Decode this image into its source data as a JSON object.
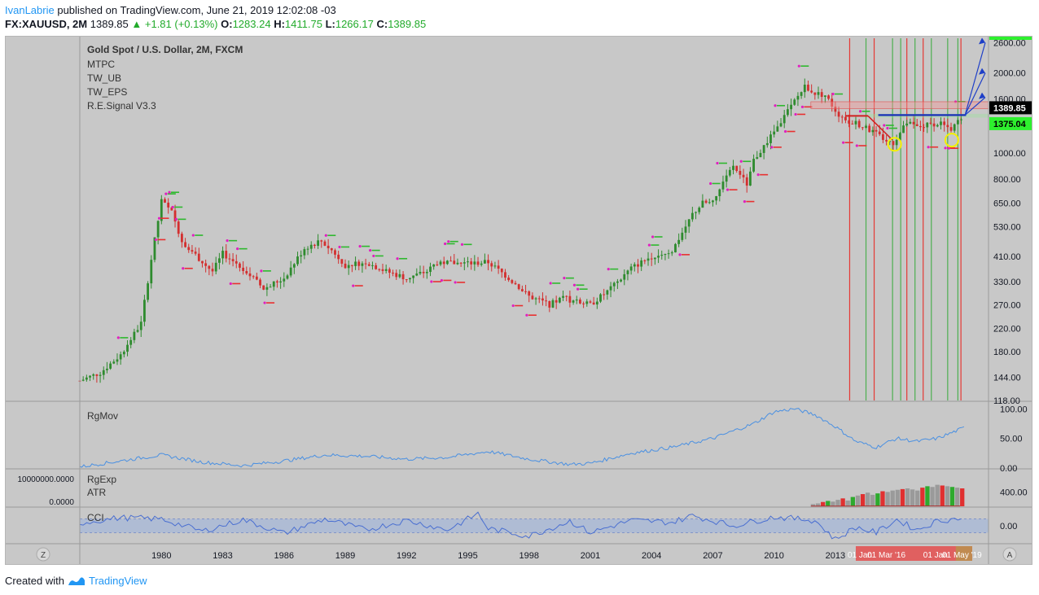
{
  "header": {
    "author": "IvanLabrie",
    "published": "published on TradingView.com, June 21, 2019 12:02:08 -03",
    "symbol": "FX:XAUUSD, 2M",
    "price": "1389.85",
    "change": "+1.81 (+0.13%)",
    "ohlc": [
      {
        "key": "O:",
        "value": "1283.24"
      },
      {
        "key": "H:",
        "value": "1411.75"
      },
      {
        "key": "L:",
        "value": "1266.17"
      },
      {
        "key": "C:",
        "value": "1389.85"
      }
    ]
  },
  "legend": {
    "title": "Gold Spot / U.S. Dollar, 2M, FXCM",
    "indicators": [
      "MTPC",
      "TW_UB",
      "TW_EPS",
      "R.E.Signal V3.3"
    ]
  },
  "colors": {
    "background": "#c8c8c8",
    "up": "#2e8b2e",
    "down": "#d32f2f",
    "vline_red": "#e53935",
    "vline_green": "#4caf50",
    "rgmov": "#4a90e2",
    "cci": "#4a6fd1",
    "cci_band": "#9fb4dc",
    "price_tag": "#000000",
    "level_tag": "#2ef02e",
    "projection": "#1e3fc8"
  },
  "chart_data": [
    {
      "type": "line",
      "panel": "price",
      "title": "Gold Spot / U.S. Dollar, 2M, FXCM",
      "scale": "log",
      "ylim": [
        118,
        2700
      ],
      "y_ticks": [
        "2600.00",
        "2000.00",
        "1600.00",
        "1000.00",
        "800.00",
        "650.00",
        "530.00",
        "410.00",
        "330.00",
        "270.00",
        "220.00",
        "180.00",
        "144.00",
        "118.00"
      ],
      "price_tags": [
        {
          "label": "1389.85",
          "value": 1389.85
        },
        {
          "label": "1375.04",
          "value": 1375.04
        }
      ],
      "x_ticks": [
        "1980",
        "1983",
        "1986",
        "1989",
        "1992",
        "1995",
        "1998",
        "2001",
        "2004",
        "2007",
        "2010",
        "2013"
      ],
      "x": [
        1976.0,
        1977.0,
        1978.0,
        1979.0,
        1979.5,
        1980.0,
        1980.5,
        1981.0,
        1982.0,
        1982.5,
        1983.0,
        1984.0,
        1985.0,
        1986.0,
        1987.0,
        1987.8,
        1988.5,
        1989.0,
        1990.0,
        1991.0,
        1992.0,
        1993.0,
        1993.5,
        1995.0,
        1996.0,
        1997.0,
        1998.0,
        1999.0,
        1999.8,
        2000.0,
        2001.0,
        2002.0,
        2003.0,
        2004.0,
        2005.0,
        2006.0,
        2006.5,
        2007.0,
        2008.0,
        2008.7,
        2009.0,
        2010.0,
        2011.0,
        2011.5,
        2012.0,
        2012.5,
        2013.0,
        2013.5,
        2014.0,
        2015.0,
        2015.8,
        2016.5,
        2017.0,
        2018.0,
        2018.7,
        2019.3
      ],
      "series": [
        {
          "values": [
            140,
            150,
            175,
            230,
            400,
            660,
            600,
            470,
            390,
            360,
            420,
            370,
            310,
            340,
            440,
            470,
            420,
            380,
            390,
            360,
            340,
            360,
            390,
            385,
            390,
            340,
            290,
            270,
            290,
            280,
            270,
            310,
            370,
            410,
            430,
            590,
            650,
            650,
            900,
            760,
            940,
            1200,
            1570,
            1780,
            1680,
            1650,
            1450,
            1300,
            1300,
            1180,
            1080,
            1300,
            1250,
            1300,
            1230,
            1389.85
          ]
        }
      ],
      "annotations": [
        "01 Jan",
        "01 Mar '16",
        "01 Jan",
        "01 May '19"
      ]
    },
    {
      "type": "line",
      "panel": "RgMov",
      "ylim": [
        0,
        110
      ],
      "y_ticks": [
        "100.00",
        "50.00",
        "0.00"
      ],
      "x": [
        1976,
        1978,
        1980,
        1982,
        1984,
        1986,
        1988,
        1990,
        1992,
        1994,
        1996,
        1998,
        2000,
        2001,
        2003,
        2005,
        2007,
        2009,
        2010,
        2011,
        2012,
        2013,
        2014,
        2015,
        2016,
        2017,
        2018,
        2019.3
      ],
      "series": [
        {
          "name": "RgMov",
          "values": [
            2,
            12,
            22,
            10,
            4,
            12,
            22,
            20,
            15,
            18,
            28,
            15,
            6,
            8,
            25,
            35,
            50,
            75,
            95,
            100,
            90,
            70,
            45,
            35,
            50,
            45,
            50,
            68
          ]
        }
      ]
    },
    {
      "type": "bar",
      "panel": "RgExp / ATR",
      "ylim": [
        0,
        1000
      ],
      "y_ticks": [
        "400.00"
      ],
      "left_labels": [
        "10000000.0000",
        "0.0000"
      ],
      "series": [
        {
          "name": "RgExp",
          "values": [
            60,
            80,
            120,
            150,
            130,
            180,
            220,
            160,
            260,
            300,
            340,
            380,
            320,
            360,
            420,
            400,
            440,
            460,
            480,
            500,
            470,
            440,
            520,
            560,
            540,
            600,
            580,
            560,
            540,
            520,
            500
          ]
        },
        {
          "name": "ATR",
          "values": [
            5,
            5,
            5,
            6,
            6,
            6,
            6,
            7,
            7,
            7,
            8,
            8,
            8,
            8,
            9,
            9,
            9,
            9,
            10,
            10,
            10,
            10,
            10,
            10,
            10,
            10,
            10,
            10,
            10,
            10,
            10
          ]
        }
      ]
    },
    {
      "type": "line",
      "panel": "CCI",
      "ylim": [
        -250,
        250
      ],
      "y_ticks": [
        "0.00"
      ],
      "band": [
        -100,
        100
      ],
      "x": [
        1976,
        1978,
        1980,
        1982,
        1984,
        1986,
        1988,
        1990,
        1992,
        1994,
        1995.5,
        1996,
        1998,
        2000,
        2001,
        2003,
        2005,
        2006,
        2008,
        2010,
        2012,
        2013,
        2014,
        2015,
        2016,
        2017,
        2018,
        2019.3
      ],
      "series": [
        {
          "name": "CCI",
          "values": [
            40,
            120,
            100,
            -80,
            90,
            -110,
            100,
            -60,
            80,
            -60,
            180,
            -40,
            -150,
            70,
            -100,
            80,
            50,
            150,
            0,
            130,
            80,
            -200,
            -20,
            -100,
            90,
            -60,
            70,
            120
          ]
        }
      ]
    }
  ],
  "buttons": {
    "left": "Z",
    "right": "A"
  },
  "footer": {
    "created_with": "Created with",
    "brand": "TradingView"
  }
}
